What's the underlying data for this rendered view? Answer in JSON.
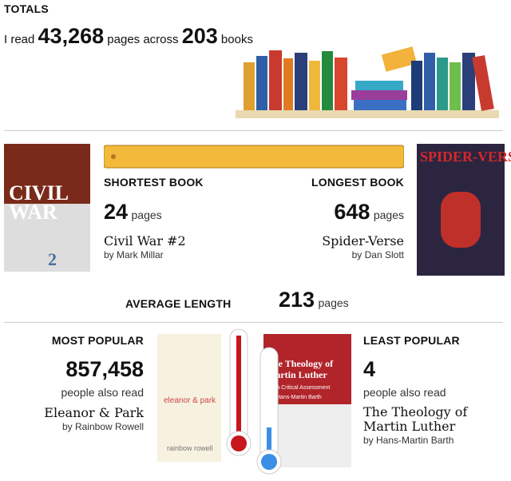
{
  "totals": {
    "title": "TOTALS",
    "prefix": "I read",
    "pages": "43,268",
    "middle": "pages across",
    "books": "203",
    "suffix": "books"
  },
  "shortest": {
    "label": "SHORTEST BOOK",
    "pages": "24",
    "unit": "pages",
    "title": "Civil War #2",
    "author": "by Mark Millar",
    "cover_title": "CIVIL WAR",
    "cover_number": "2"
  },
  "longest": {
    "label": "LONGEST BOOK",
    "pages": "648",
    "unit": "pages",
    "title": "Spider-Verse",
    "author": "by Dan Slott",
    "cover_title": "SPIDER-VERSE"
  },
  "average": {
    "label": "AVERAGE LENGTH",
    "pages": "213",
    "unit": "pages"
  },
  "most_popular": {
    "label": "MOST POPULAR",
    "count": "857,458",
    "unit": "people also read",
    "title": "Eleanor & Park",
    "author": "by Rainbow Rowell",
    "cover_title": "eleanor & park",
    "cover_author": "rainbow rowell"
  },
  "least_popular": {
    "label": "LEAST POPULAR",
    "count": "4",
    "unit": "people also read",
    "title": "The Theology of Martin Luther",
    "author": "by Hans-Martin Barth",
    "cover_title": "The Theology of Martin Luther",
    "cover_subtitle": "A Critical Assessment",
    "cover_author": "Hans-Martin Barth"
  }
}
